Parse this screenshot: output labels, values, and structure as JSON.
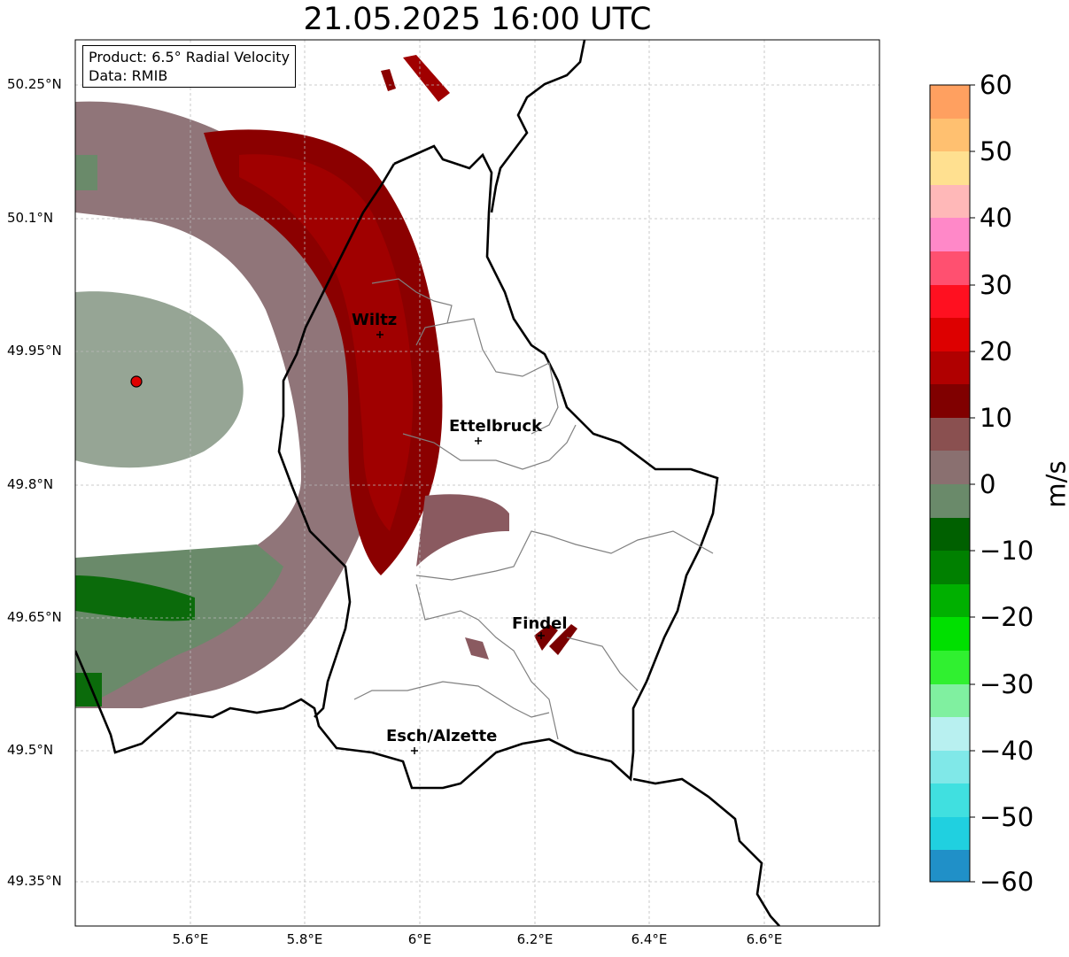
{
  "title": "21.05.2025 16:00 UTC",
  "info_box": {
    "product": "Product: 6.5° Radial Velocity",
    "data": "Data: RMIB"
  },
  "lat_labels": [
    "50.25°N",
    "50.1°N",
    "49.95°N",
    "49.8°N",
    "49.65°N",
    "49.5°N",
    "49.35°N"
  ],
  "lon_labels": [
    "5.6°E",
    "5.8°E",
    "6°E",
    "6.2°E",
    "6.4°E",
    "6.6°E"
  ],
  "cities": [
    {
      "name": "Wiltz"
    },
    {
      "name": "Ettelbruck"
    },
    {
      "name": "Findel"
    },
    {
      "name": "Esch/Alzette"
    }
  ],
  "colorbar": {
    "label": "m/s",
    "ticks": [
      "60",
      "50",
      "40",
      "30",
      "20",
      "10",
      "0",
      "−10",
      "−20",
      "−30",
      "−40",
      "−50",
      "−60"
    ],
    "range": [
      -60,
      60
    ]
  },
  "colors": {
    "inbound_strong": "#006400",
    "near_zero": "#8a6e70",
    "outbound_strong": "#7a0000",
    "radar_site": "#e00000"
  }
}
